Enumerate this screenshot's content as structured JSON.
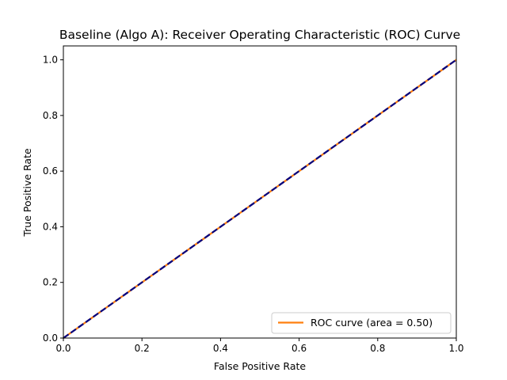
{
  "chart_data": {
    "type": "line",
    "title": "Baseline (Algo A): Receiver Operating Characteristic (ROC) Curve",
    "xlabel": "False Positive Rate",
    "ylabel": "True Positive Rate",
    "xlim": [
      0.0,
      1.0
    ],
    "ylim": [
      0.0,
      1.05
    ],
    "x_ticks": [
      0.0,
      0.2,
      0.4,
      0.6,
      0.8,
      1.0
    ],
    "y_ticks": [
      0.0,
      0.2,
      0.4,
      0.6,
      0.8,
      1.0
    ],
    "x_tick_labels": [
      "0.0",
      "0.2",
      "0.4",
      "0.6",
      "0.8",
      "1.0"
    ],
    "y_tick_labels": [
      "0.0",
      "0.2",
      "0.4",
      "0.6",
      "0.8",
      "1.0"
    ],
    "grid": false,
    "legend_position": "lower-right",
    "series": [
      {
        "name": "ROC curve (area = 0.50)",
        "x": [
          0.0,
          1.0
        ],
        "y": [
          0.0,
          1.0
        ],
        "color": "#ff7f0e",
        "style": "solid"
      },
      {
        "x": [
          0.0,
          1.0
        ],
        "y": [
          0.0,
          1.0
        ],
        "color": "#000080",
        "style": "dashed"
      }
    ]
  }
}
